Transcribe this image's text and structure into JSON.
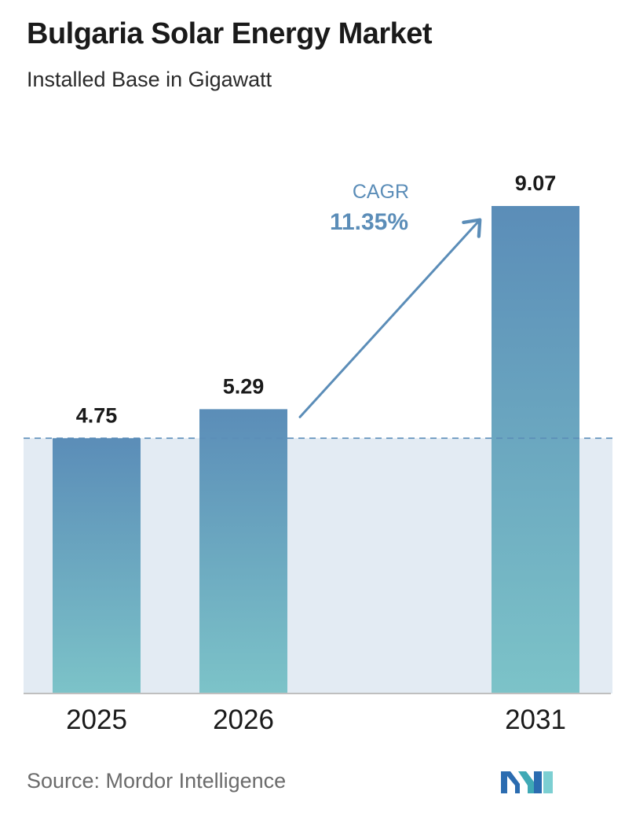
{
  "title": "Bulgaria Solar Energy Market",
  "subtitle": "Installed Base in Gigawatt",
  "source": "Source:  Mordor Intelligence",
  "chart_data": {
    "type": "bar",
    "categories": [
      "2025",
      "2026",
      "2031"
    ],
    "values": [
      4.75,
      5.29,
      9.07
    ],
    "value_labels": [
      "4.75",
      "5.29",
      "9.07"
    ],
    "annotation": {
      "label": "CAGR",
      "value": "11.35%"
    },
    "title": "Bulgaria Solar Energy Market",
    "subtitle": "Installed Base in Gigawatt",
    "ylim": [
      0,
      9.07
    ],
    "grid": false,
    "legend": "none",
    "colors": {
      "bar_top": "#5b8db8",
      "bar_bottom": "#7cc3c8",
      "band": "#e3ebf3",
      "reference_line": "#5b8db8",
      "cagr_text": "#5b8db8",
      "axis": "#bfbfbf"
    }
  }
}
